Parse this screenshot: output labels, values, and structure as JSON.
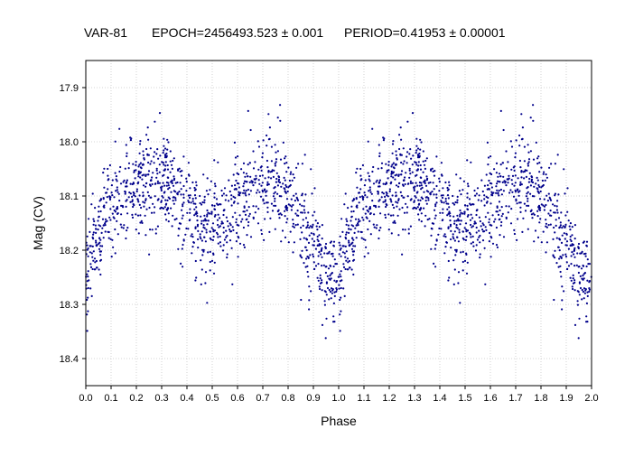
{
  "header": {
    "star": "VAR-81",
    "epoch": "EPOCH=2456493.523 ± 0.001",
    "period": "PERIOD=0.41953 ± 0.00001"
  },
  "chart_data": {
    "type": "scatter",
    "title": "",
    "xlabel": "Phase",
    "ylabel": "Mag (CV)",
    "xlim": [
      0.0,
      2.0
    ],
    "ylim": [
      18.45,
      17.85
    ],
    "y_inverted": true,
    "grid": true,
    "marker_color": "#00008b",
    "x_ticks": [
      "0.0",
      "0.1",
      "0.2",
      "0.3",
      "0.4",
      "0.5",
      "0.6",
      "0.7",
      "0.8",
      "0.9",
      "1.0",
      "1.1",
      "1.2",
      "1.3",
      "1.4",
      "1.5",
      "1.6",
      "1.7",
      "1.8",
      "1.9",
      "2.0"
    ],
    "y_ticks": [
      "17.9",
      "18.0",
      "18.1",
      "18.2",
      "18.3",
      "18.4"
    ],
    "light_curve_knots": {
      "phase": [
        0.0,
        0.05,
        0.1,
        0.15,
        0.2,
        0.25,
        0.3,
        0.35,
        0.4,
        0.45,
        0.5,
        0.55,
        0.6,
        0.65,
        0.7,
        0.75,
        0.8,
        0.85,
        0.9,
        0.95,
        1.0
      ],
      "mag": [
        18.24,
        18.17,
        18.11,
        18.09,
        18.08,
        18.07,
        18.07,
        18.09,
        18.12,
        18.16,
        18.15,
        18.14,
        18.12,
        18.09,
        18.07,
        18.06,
        18.09,
        18.15,
        18.2,
        18.24,
        18.25
      ]
    },
    "points_per_cycle": 1150,
    "scatter_sigma": 0.045
  }
}
